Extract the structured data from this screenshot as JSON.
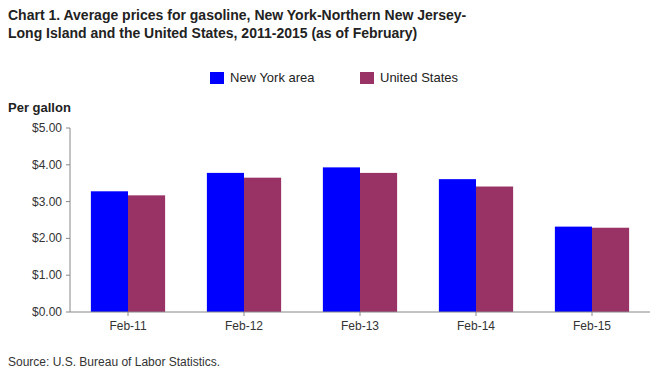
{
  "chart_data": {
    "type": "bar",
    "title": "Chart 1. Average prices for gasoline, New York-Northern New Jersey-\nLong Island and the United States, 2011-2015 (as of February)",
    "y_label": "Per gallon",
    "source": "Source: U.S. Bureau of Labor Statistics.",
    "categories": [
      "Feb-11",
      "Feb-12",
      "Feb-13",
      "Feb-14",
      "Feb-15"
    ],
    "series": [
      {
        "name": "New York area",
        "color": "#0000FF",
        "values": [
          3.28,
          3.78,
          3.93,
          3.61,
          2.32
        ]
      },
      {
        "name": "United States",
        "color": "#993366",
        "values": [
          3.17,
          3.65,
          3.78,
          3.41,
          2.29
        ]
      }
    ],
    "ylim": [
      0,
      5.0
    ],
    "yticks": [
      {
        "value": 0.0,
        "label": "$0.00"
      },
      {
        "value": 1.0,
        "label": "$1.00"
      },
      {
        "value": 2.0,
        "label": "$2.00"
      },
      {
        "value": 3.0,
        "label": "$3.00"
      },
      {
        "value": 4.0,
        "label": "$4.00"
      },
      {
        "value": 5.0,
        "label": "$5.00"
      }
    ],
    "grid": false,
    "legend": "top"
  }
}
